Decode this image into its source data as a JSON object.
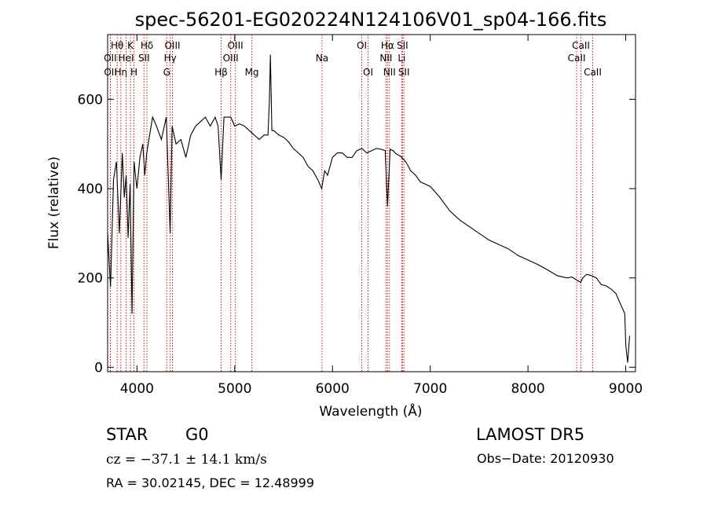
{
  "chart_data": {
    "type": "line",
    "title": "spec-56201-EG020224N124106V01_sp04-166.fits",
    "xlabel": "Wavelength (Å)",
    "ylabel": "Flux (relative)",
    "xlim": [
      3700,
      9100
    ],
    "ylim": [
      -10,
      745
    ],
    "x_ticks": [
      4000,
      5000,
      6000,
      7000,
      8000,
      9000
    ],
    "y_ticks": [
      0,
      200,
      400,
      600
    ],
    "grid": false,
    "series": [
      {
        "x": [
          3700,
          3730,
          3760,
          3790,
          3820,
          3850,
          3870,
          3890,
          3910,
          3930,
          3950,
          3970,
          4000,
          4030,
          4060,
          4080,
          4100,
          4130,
          4160,
          4200,
          4250,
          4300,
          4340,
          4360,
          4400,
          4450,
          4500,
          4550,
          4600,
          4650,
          4700,
          4750,
          4800,
          4830,
          4861,
          4890,
          4920,
          4960,
          5000,
          5050,
          5100,
          5150,
          5200,
          5250,
          5300,
          5340,
          5355,
          5365,
          5380,
          5400,
          5450,
          5500,
          5550,
          5600,
          5650,
          5700,
          5750,
          5800,
          5850,
          5890,
          5920,
          5950,
          6000,
          6050,
          6100,
          6150,
          6200,
          6250,
          6300,
          6350,
          6400,
          6450,
          6500,
          6540,
          6563,
          6590,
          6620,
          6650,
          6700,
          6750,
          6800,
          6850,
          6900,
          6950,
          7000,
          7100,
          7200,
          7300,
          7400,
          7500,
          7600,
          7700,
          7800,
          7900,
          8000,
          8100,
          8200,
          8300,
          8400,
          8450,
          8500,
          8540,
          8560,
          8600,
          8650,
          8700,
          8750,
          8800,
          8850,
          8900,
          8950,
          8990,
          9000,
          9020,
          9040
        ],
        "y": [
          300,
          180,
          420,
          460,
          300,
          480,
          380,
          430,
          290,
          410,
          120,
          460,
          400,
          470,
          500,
          430,
          480,
          520,
          560,
          540,
          510,
          560,
          300,
          540,
          500,
          510,
          470,
          520,
          540,
          550,
          560,
          540,
          560,
          540,
          420,
          560,
          560,
          560,
          540,
          545,
          540,
          530,
          520,
          510,
          520,
          520,
          600,
          700,
          530,
          530,
          520,
          515,
          505,
          490,
          480,
          470,
          450,
          440,
          420,
          400,
          440,
          430,
          470,
          480,
          480,
          470,
          470,
          485,
          490,
          480,
          485,
          490,
          488,
          485,
          360,
          488,
          485,
          478,
          472,
          460,
          440,
          430,
          415,
          410,
          405,
          380,
          350,
          330,
          315,
          300,
          285,
          275,
          265,
          250,
          240,
          230,
          218,
          205,
          200,
          202,
          195,
          190,
          200,
          208,
          205,
          200,
          185,
          182,
          175,
          165,
          140,
          120,
          50,
          10,
          70
        ]
      }
    ],
    "spectral_lines": [
      {
        "label": "Hθ",
        "wl": 3798,
        "row": 1
      },
      {
        "label": "OII",
        "wl": 3727,
        "row": 2
      },
      {
        "label": "OII",
        "wl": 3729,
        "row": 3
      },
      {
        "label": "Hη",
        "wl": 3835,
        "row": 3
      },
      {
        "label": "HeI",
        "wl": 3889,
        "row": 2
      },
      {
        "label": "K",
        "wl": 3934,
        "row": 1
      },
      {
        "label": "H",
        "wl": 3969,
        "row": 3
      },
      {
        "label": "Hδ",
        "wl": 4102,
        "row": 1
      },
      {
        "label": "SII",
        "wl": 4072,
        "row": 2
      },
      {
        "label": "OIII",
        "wl": 4363,
        "row": 1
      },
      {
        "label": "Hγ",
        "wl": 4340,
        "row": 2
      },
      {
        "label": "G",
        "wl": 4305,
        "row": 3
      },
      {
        "label": "OIII",
        "wl": 5007,
        "row": 1
      },
      {
        "label": "OIII",
        "wl": 4959,
        "row": 2
      },
      {
        "label": "Hβ",
        "wl": 4861,
        "row": 3
      },
      {
        "label": "Mg",
        "wl": 5175,
        "row": 3
      },
      {
        "label": "Na",
        "wl": 5893,
        "row": 2
      },
      {
        "label": "OI",
        "wl": 6300,
        "row": 1
      },
      {
        "label": "OI",
        "wl": 6364,
        "row": 3
      },
      {
        "label": "Hα",
        "wl": 6563,
        "row": 1
      },
      {
        "label": "NII",
        "wl": 6548,
        "row": 2
      },
      {
        "label": "NII",
        "wl": 6583,
        "row": 3
      },
      {
        "label": "SII",
        "wl": 6716,
        "row": 1
      },
      {
        "label": "Li",
        "wl": 6708,
        "row": 2
      },
      {
        "label": "SII",
        "wl": 6731,
        "row": 3
      },
      {
        "label": "CaII",
        "wl": 8542,
        "row": 1
      },
      {
        "label": "CaII",
        "wl": 8498,
        "row": 2
      },
      {
        "label": "CaII",
        "wl": 8662,
        "row": 3
      }
    ]
  },
  "info": {
    "class_label": "STAR",
    "subclass": "G0",
    "survey": "LAMOST DR5",
    "cz_line": "cz = −37.1 ± 14.1 km/s",
    "obs_date": "Obs−Date: 20120930",
    "radec": "RA =  30.02145, DEC =  12.48999"
  },
  "colors": {
    "line_marker": "#cc0000",
    "spectrum": "#000000"
  }
}
